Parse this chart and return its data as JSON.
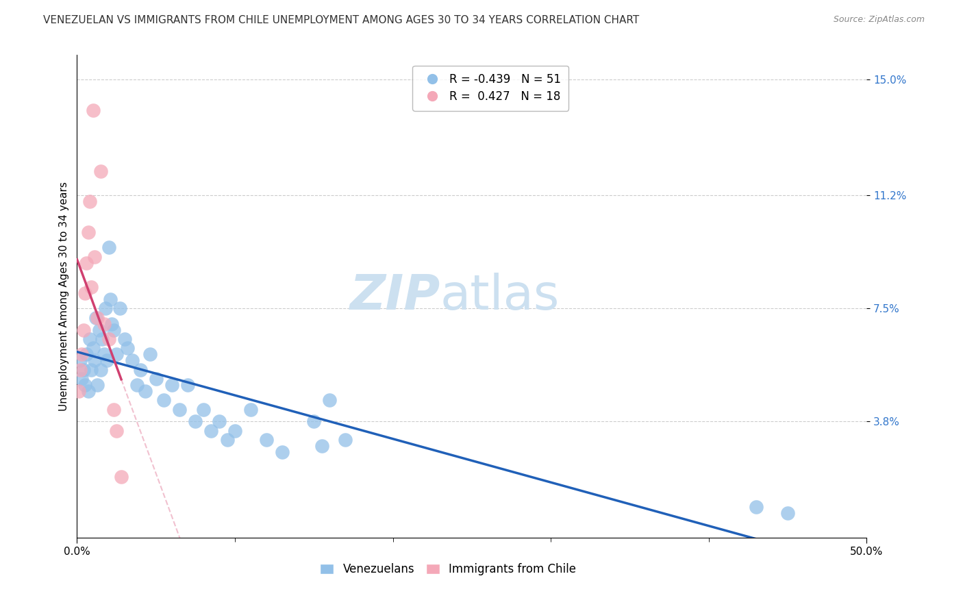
{
  "title": "VENEZUELAN VS IMMIGRANTS FROM CHILE UNEMPLOYMENT AMONG AGES 30 TO 34 YEARS CORRELATION CHART",
  "source": "Source: ZipAtlas.com",
  "ylabel": "Unemployment Among Ages 30 to 34 years",
  "xlabel": "",
  "watermark_zip": "ZIP",
  "watermark_atlas": "atlas",
  "xlim": [
    0.0,
    0.5
  ],
  "ylim": [
    0.0,
    0.158
  ],
  "ytick_positions": [
    0.038,
    0.075,
    0.112,
    0.15
  ],
  "ytick_labels": [
    "3.8%",
    "7.5%",
    "11.2%",
    "15.0%"
  ],
  "legend_blue_r": "R = -0.439",
  "legend_blue_n": "N = 51",
  "legend_pink_r": "R =  0.427",
  "legend_pink_n": "N = 18",
  "blue_color": "#92c0e8",
  "pink_color": "#f4a8b8",
  "trend_blue_color": "#2060b8",
  "trend_pink_color": "#d04070",
  "trend_pink_dash_color": "#e898b0",
  "venezuelan_x": [
    0.002,
    0.003,
    0.004,
    0.005,
    0.006,
    0.007,
    0.008,
    0.009,
    0.01,
    0.011,
    0.012,
    0.013,
    0.014,
    0.015,
    0.016,
    0.017,
    0.018,
    0.019,
    0.02,
    0.021,
    0.022,
    0.023,
    0.025,
    0.027,
    0.03,
    0.032,
    0.035,
    0.038,
    0.04,
    0.043,
    0.046,
    0.05,
    0.055,
    0.06,
    0.065,
    0.07,
    0.075,
    0.08,
    0.085,
    0.09,
    0.095,
    0.1,
    0.11,
    0.12,
    0.13,
    0.15,
    0.155,
    0.16,
    0.17,
    0.43,
    0.45
  ],
  "venezuelan_y": [
    0.058,
    0.052,
    0.055,
    0.05,
    0.06,
    0.048,
    0.065,
    0.055,
    0.062,
    0.058,
    0.072,
    0.05,
    0.068,
    0.055,
    0.065,
    0.06,
    0.075,
    0.058,
    0.095,
    0.078,
    0.07,
    0.068,
    0.06,
    0.075,
    0.065,
    0.062,
    0.058,
    0.05,
    0.055,
    0.048,
    0.06,
    0.052,
    0.045,
    0.05,
    0.042,
    0.05,
    0.038,
    0.042,
    0.035,
    0.038,
    0.032,
    0.035,
    0.042,
    0.032,
    0.028,
    0.038,
    0.03,
    0.045,
    0.032,
    0.01,
    0.008
  ],
  "chile_x": [
    0.001,
    0.002,
    0.003,
    0.004,
    0.005,
    0.006,
    0.007,
    0.008,
    0.009,
    0.01,
    0.011,
    0.013,
    0.015,
    0.017,
    0.02,
    0.023,
    0.025,
    0.028
  ],
  "chile_y": [
    0.048,
    0.055,
    0.06,
    0.068,
    0.08,
    0.09,
    0.1,
    0.11,
    0.082,
    0.14,
    0.092,
    0.072,
    0.12,
    0.07,
    0.065,
    0.042,
    0.035,
    0.02
  ],
  "grid_color": "#cccccc",
  "background_color": "#ffffff",
  "title_fontsize": 11,
  "axis_label_fontsize": 11,
  "tick_label_fontsize": 11,
  "legend_fontsize": 12,
  "watermark_zip_fontsize": 52,
  "watermark_atlas_fontsize": 52,
  "watermark_color": "#cce0f0"
}
